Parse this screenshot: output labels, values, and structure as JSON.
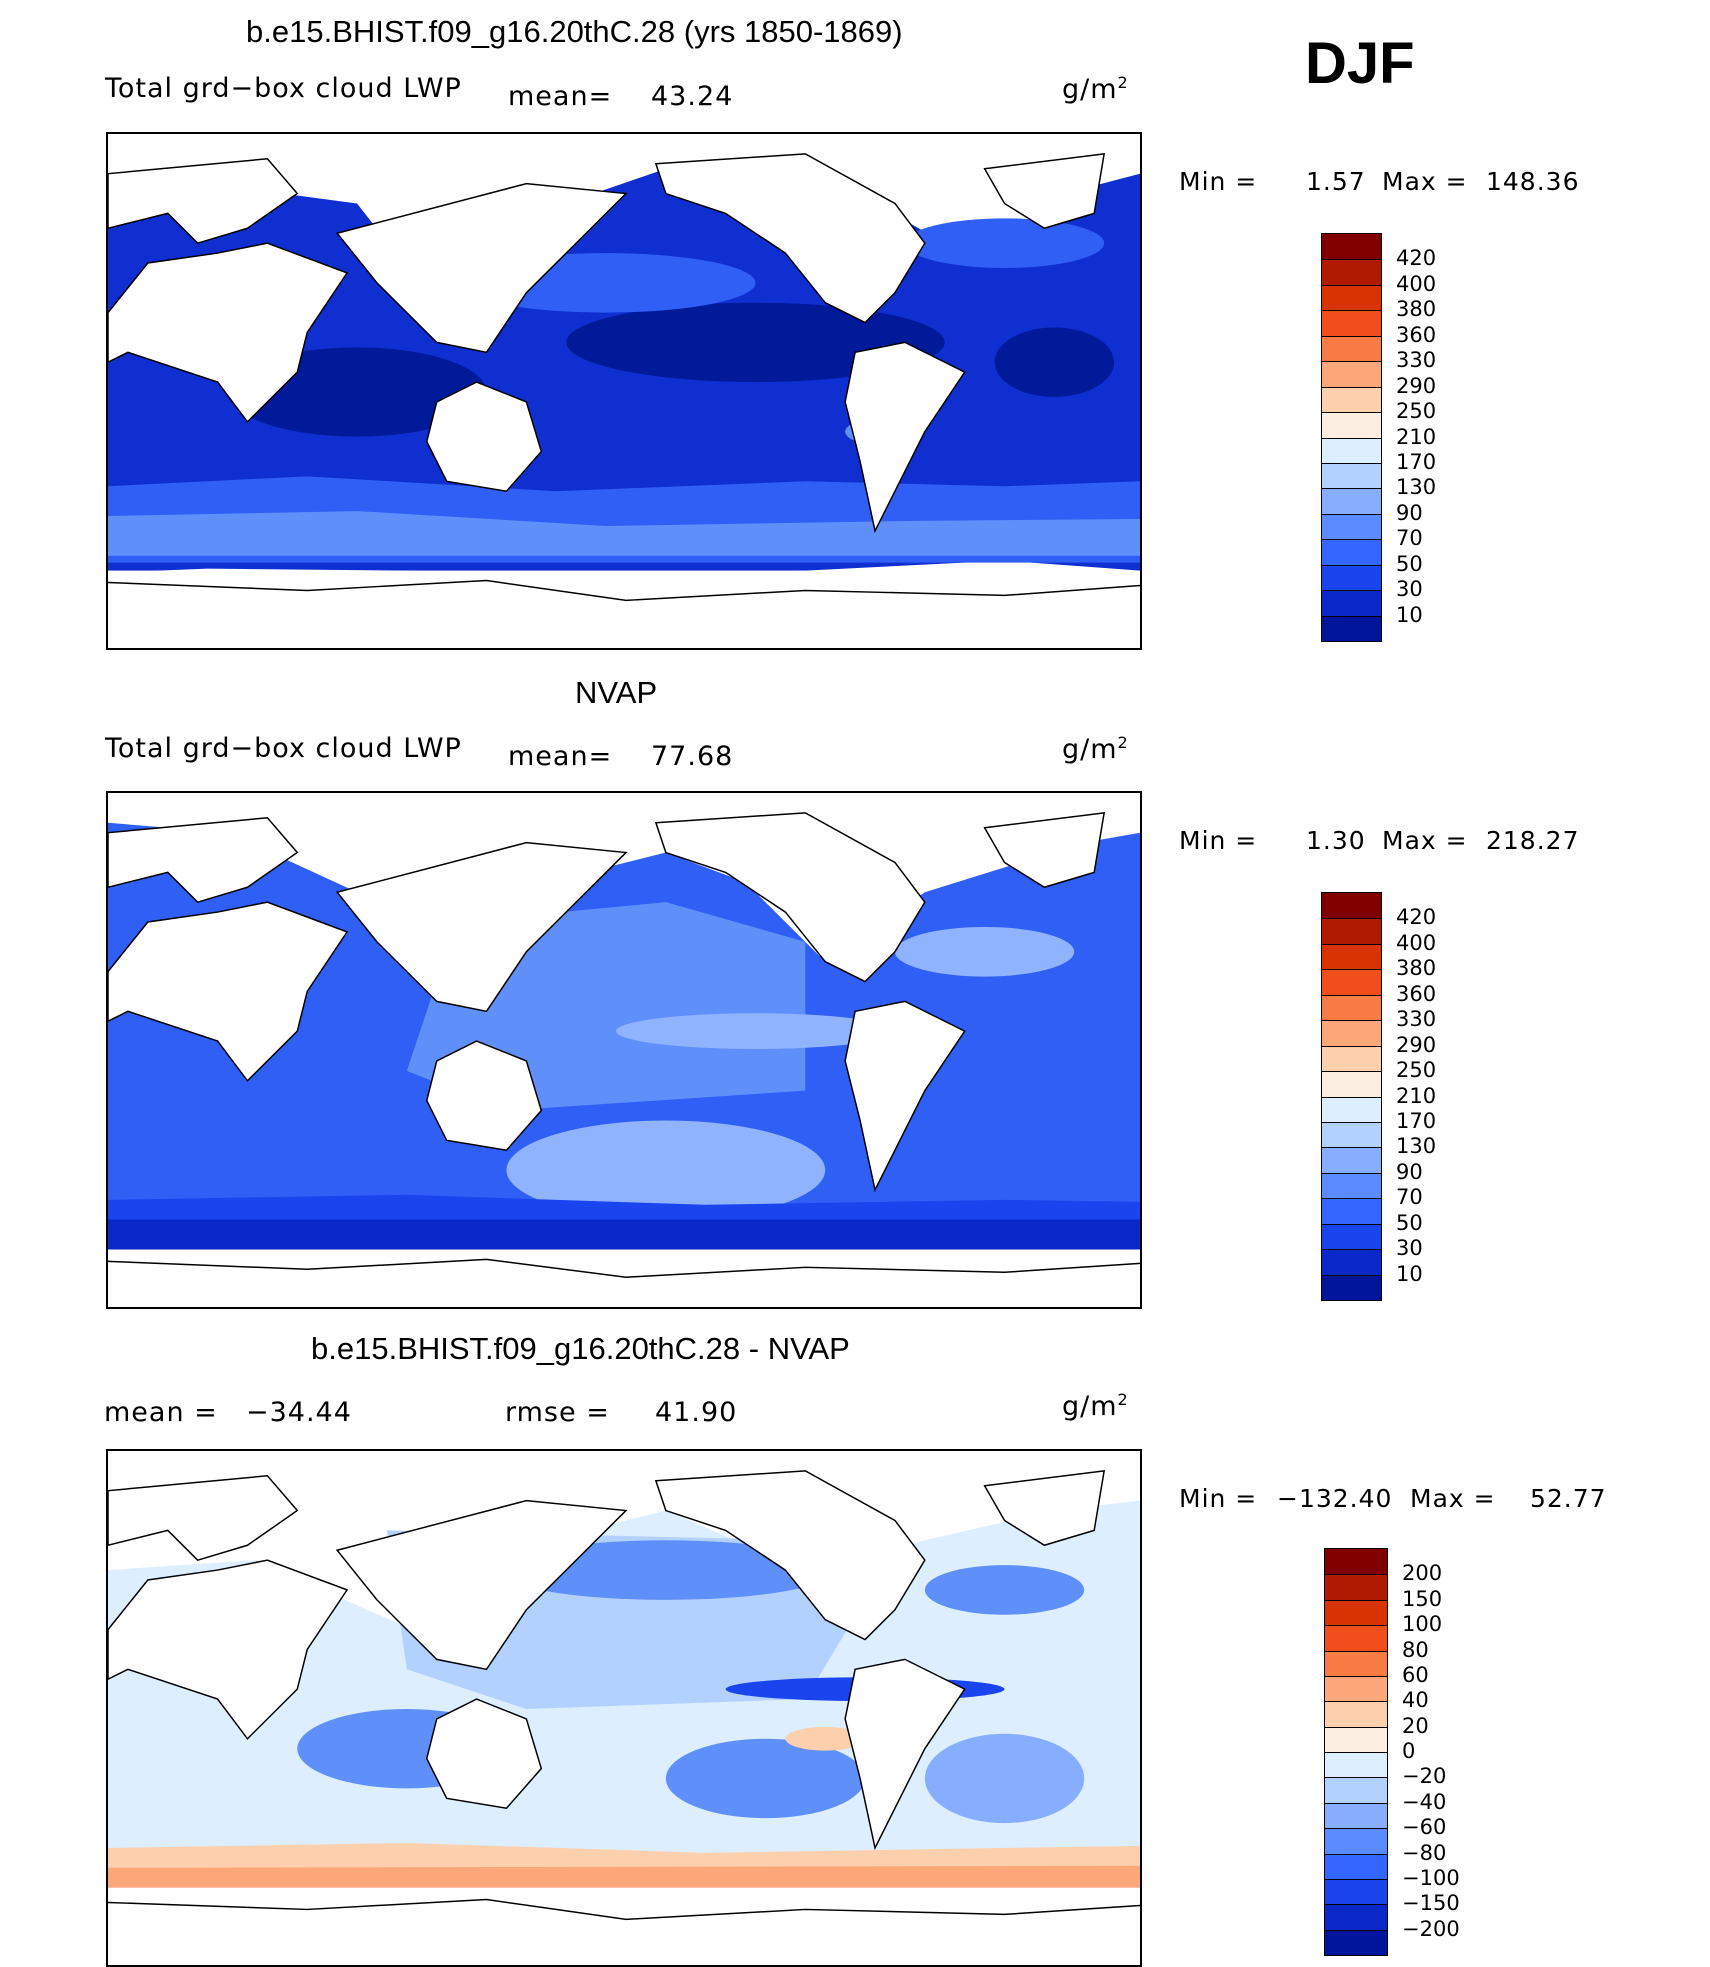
{
  "header": {
    "season": "DJF"
  },
  "panels": [
    {
      "title": "b.e15.BHIST.f09_g16.20thC.28 (yrs 1850-1869)",
      "left_label": "Total grd−box cloud LWP",
      "mean_label": "mean=",
      "mean_value": "43.24",
      "units": "g/m",
      "units_exp": "2",
      "min_label": "Min =",
      "min_value": "1.57",
      "max_label": "Max =",
      "max_value": "148.36",
      "colorbar": {
        "labels": [
          "420",
          "400",
          "380",
          "360",
          "330",
          "290",
          "250",
          "210",
          "170",
          "130",
          "90",
          "70",
          "50",
          "30",
          "10"
        ],
        "colors": [
          "#800000",
          "#b01a00",
          "#d83300",
          "#f04e1b",
          "#f87a45",
          "#fba77a",
          "#fcd0ad",
          "#fceee0",
          "#dceeff",
          "#b3d1ff",
          "#87adff",
          "#5b8bff",
          "#3366ff",
          "#1a44ee",
          "#0a28c8",
          "#00159c"
        ]
      }
    },
    {
      "title": "NVAP",
      "left_label": "Total grd−box cloud LWP",
      "mean_label": "mean=",
      "mean_value": "77.68",
      "units": "g/m",
      "units_exp": "2",
      "min_label": "Min =",
      "min_value": "1.30",
      "max_label": "Max =",
      "max_value": "218.27",
      "colorbar": {
        "labels": [
          "420",
          "400",
          "380",
          "360",
          "330",
          "290",
          "250",
          "210",
          "170",
          "130",
          "90",
          "70",
          "50",
          "30",
          "10"
        ],
        "colors": [
          "#800000",
          "#b01a00",
          "#d83300",
          "#f04e1b",
          "#f87a45",
          "#fba77a",
          "#fcd0ad",
          "#fceee0",
          "#dceeff",
          "#b3d1ff",
          "#87adff",
          "#5b8bff",
          "#3366ff",
          "#1a44ee",
          "#0a28c8",
          "#00159c"
        ]
      }
    },
    {
      "title": "b.e15.BHIST.f09_g16.20thC.28 - NVAP",
      "mean_label": "mean =",
      "mean_value": "−34.44",
      "rmse_label": "rmse =",
      "rmse_value": "41.90",
      "units": "g/m",
      "units_exp": "2",
      "min_label": "Min =",
      "min_value": "−132.40",
      "max_label": "Max =",
      "max_value": "52.77",
      "colorbar": {
        "labels": [
          "200",
          "150",
          "100",
          "80",
          "60",
          "40",
          "20",
          "0",
          "−20",
          "−40",
          "−60",
          "−80",
          "−100",
          "−150",
          "−200"
        ],
        "colors": [
          "#800000",
          "#b01a00",
          "#d83300",
          "#f04e1b",
          "#f87a45",
          "#fba77a",
          "#fcd0ad",
          "#fceee0",
          "#dceeff",
          "#b3d1ff",
          "#87adff",
          "#5b8bff",
          "#3366ff",
          "#1a44ee",
          "#0a28c8",
          "#00159c"
        ]
      }
    }
  ]
}
